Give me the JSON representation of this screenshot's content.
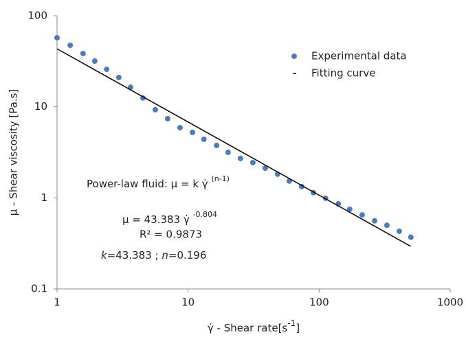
{
  "chart_data": {
    "type": "scatter",
    "log_scale": {
      "x": true,
      "y": true
    },
    "grid": false,
    "xlabel": "γ̇ - Shear rate[s",
    "xlabel_superscript": "-1",
    "xlabel_end": "]",
    "ylabel": "μ - Shear viscosity [Pa.s]",
    "xlim": [
      1,
      1000
    ],
    "ylim": [
      0.1,
      100
    ],
    "xticks": [
      1,
      10,
      100,
      1000
    ],
    "yticks": [
      0.1,
      1,
      10,
      100
    ],
    "legend": "top-right",
    "series": [
      {
        "name": "Experimental data",
        "color": "#4a7ebb",
        "style": "markers",
        "x": [
          1,
          1.26,
          1.58,
          1.94,
          2.39,
          2.96,
          3.64,
          4.52,
          5.62,
          6.98,
          8.68,
          10.8,
          13.2,
          16.5,
          20.2,
          25.1,
          31.2,
          38.8,
          48.2,
          59.2,
          73.6,
          90.4,
          112,
          140,
          171,
          213,
          265,
          329,
          409,
          501
        ],
        "values": [
          57.4,
          47.4,
          38.5,
          31.8,
          25.8,
          21,
          16.4,
          12.5,
          9.3,
          7.4,
          5.9,
          5.24,
          4.4,
          3.77,
          3.16,
          2.71,
          2.44,
          2.12,
          1.82,
          1.53,
          1.33,
          1.14,
          0.99,
          0.86,
          0.75,
          0.65,
          0.56,
          0.5,
          0.43,
          0.37
        ]
      },
      {
        "name": "Fitting curve",
        "color": "#000000",
        "style": "line",
        "x": [
          1,
          500
        ],
        "values": [
          43.383,
          0.2933
        ]
      }
    ],
    "annotations": {
      "model": "Power-law fluid: μ = k γ̇",
      "model_exponent": "(n-1)",
      "fit": "μ = 43.383 γ̇",
      "fit_exponent": "-0.804",
      "r2": "R² = 0.9873",
      "k_label": "k",
      "k_value": "=43.383 ;",
      "n_label": "n",
      "n_value": "=0.196"
    }
  }
}
